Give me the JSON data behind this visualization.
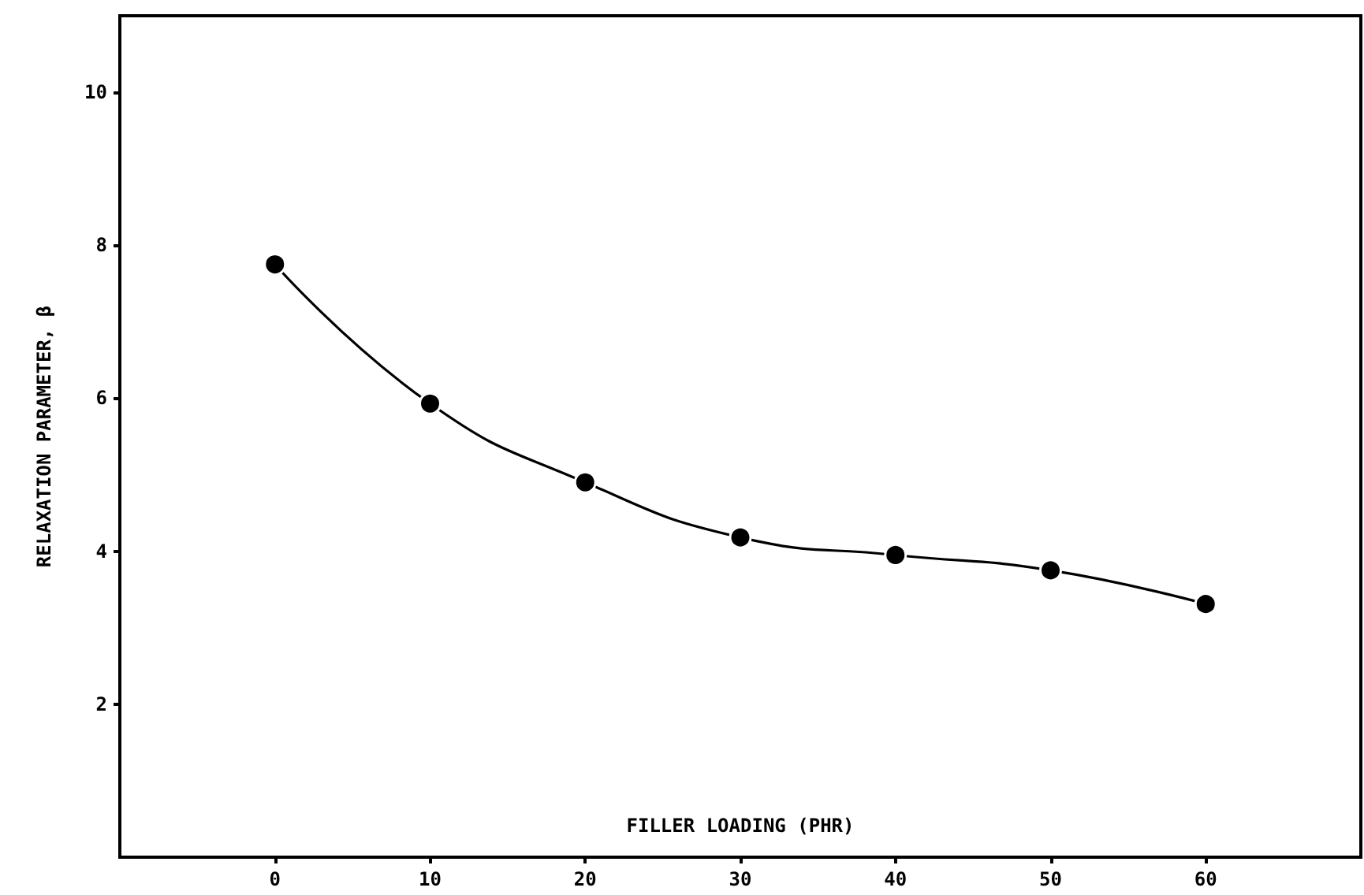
{
  "chart_data": {
    "type": "line",
    "xlabel": "FILLER LOADING (PHR)",
    "ylabel": "RELAXATION PARAMETER, β",
    "x": [
      0,
      10,
      20,
      30,
      40,
      50,
      60
    ],
    "series": [
      {
        "color": "#000000",
        "values": [
          7.75,
          5.93,
          4.9,
          4.18,
          3.95,
          3.75,
          3.31
        ]
      }
    ],
    "xlim": [
      -10,
      70
    ],
    "xticks": [
      0,
      10,
      20,
      30,
      40,
      50,
      60
    ],
    "ylim": [
      0,
      11
    ],
    "yticks": [
      2,
      4,
      6,
      8,
      10
    ],
    "marker": "circle",
    "line_style": "solid"
  }
}
